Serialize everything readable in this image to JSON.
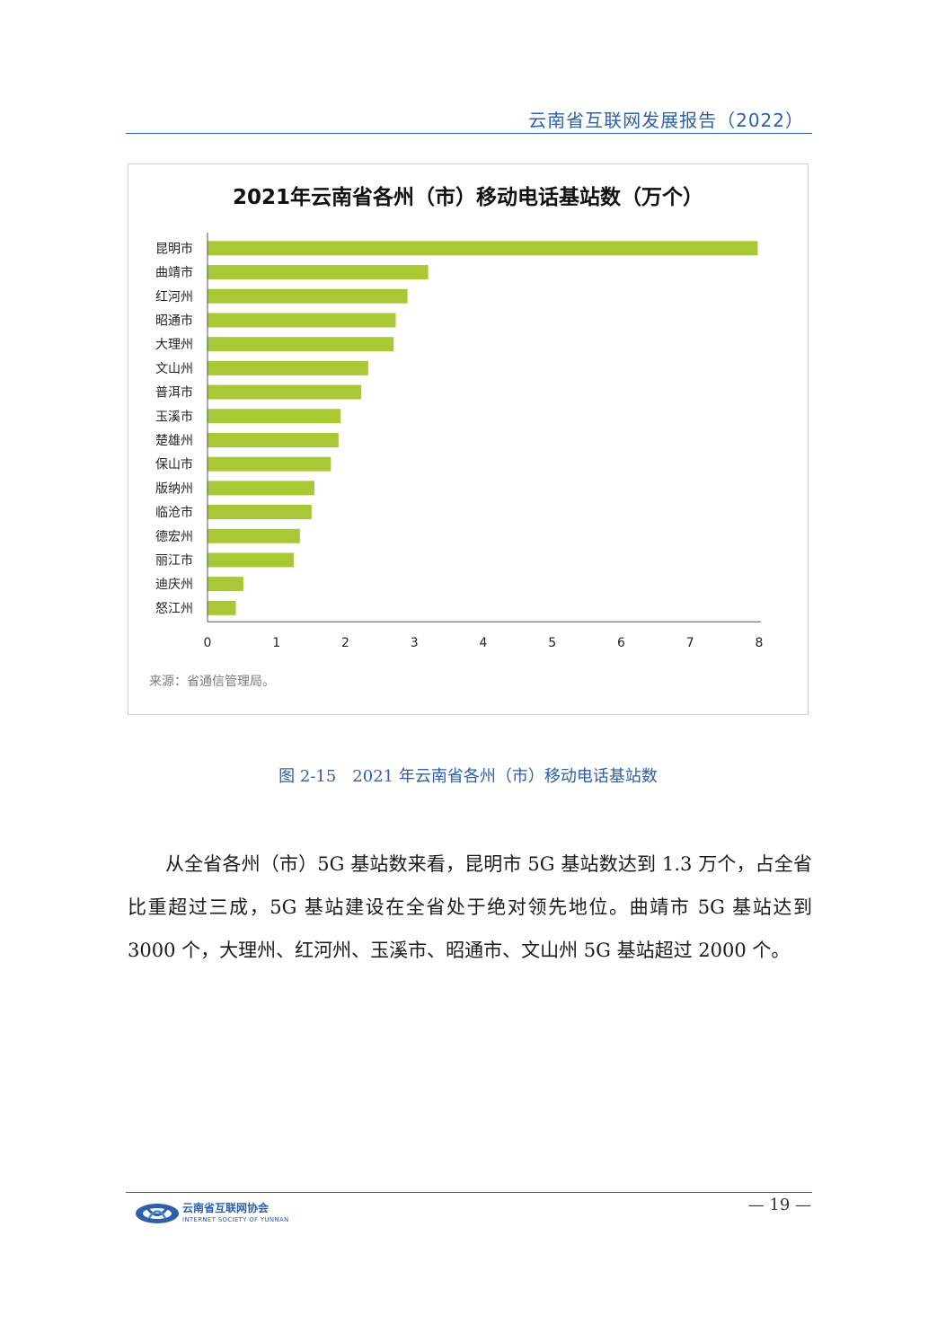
{
  "header": {
    "title": "云南省互联网发展报告（2022）"
  },
  "chart": {
    "source": "来源：省通信管理局。"
  },
  "chart_data": {
    "type": "bar",
    "orientation": "horizontal",
    "title": "2021年云南省各州（市）移动电话基站数（万个）",
    "categories": [
      "昆明市",
      "曲靖市",
      "红河州",
      "昭通市",
      "大理州",
      "文山州",
      "普洱市",
      "玉溪市",
      "楚雄州",
      "保山市",
      "版纳州",
      "临沧市",
      "德宏州",
      "丽江市",
      "迪庆州",
      "怒江州"
    ],
    "values": [
      7.98,
      3.2,
      2.9,
      2.73,
      2.7,
      2.33,
      2.23,
      1.93,
      1.9,
      1.79,
      1.55,
      1.51,
      1.34,
      1.25,
      0.52,
      0.41
    ],
    "xlim": [
      0,
      8
    ],
    "xticks": [
      "0",
      "1",
      "2",
      "3",
      "4",
      "5",
      "6",
      "7",
      "8"
    ],
    "xlabel": "",
    "ylabel": "",
    "grid": false,
    "bar_color": "#a8c935"
  },
  "caption": "图 2-15　2021 年云南省各州（市）移动电话基站数",
  "body": {
    "paragraph": "从全省各州（市）5G 基站数来看，昆明市 5G 基站数达到 1.3 万个，占全省比重超过三成，5G 基站建设在全省处于绝对领先地位。曲靖市 5G 基站达到 3000 个，大理州、红河州、玉溪市、昭通市、文山州 5G 基站超过 2000 个。"
  },
  "footer": {
    "org_cn": "云南省互联网协会",
    "org_en": "INTERNET SOCIETY OF YUNNAN",
    "page_number": "— 19 —"
  },
  "colors": {
    "accent": "#2e5fa8",
    "bar": "#a8c935"
  }
}
